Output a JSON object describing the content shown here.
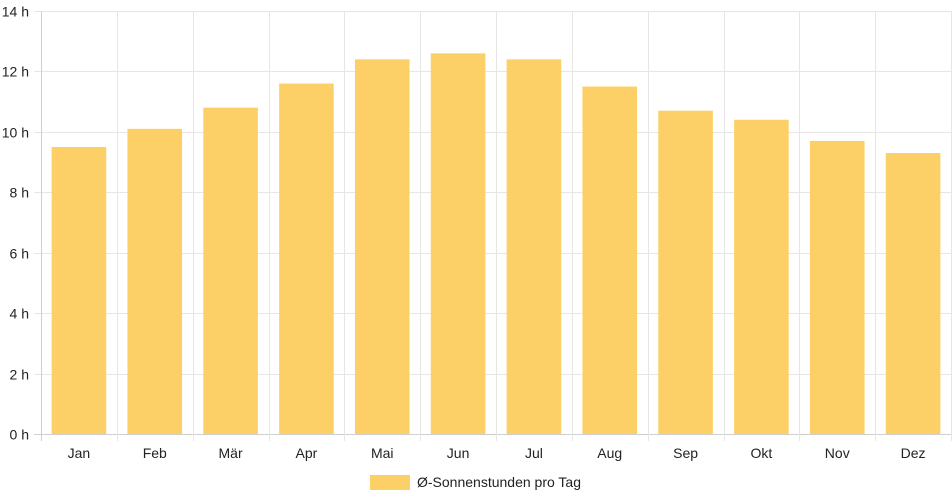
{
  "chart_data": {
    "type": "bar",
    "categories": [
      "Jan",
      "Feb",
      "Mär",
      "Apr",
      "Mai",
      "Jun",
      "Jul",
      "Aug",
      "Sep",
      "Okt",
      "Nov",
      "Dez"
    ],
    "series": [
      {
        "name": "Ø-Sonnenstunden pro Tag",
        "values": [
          9.5,
          10.1,
          10.8,
          11.6,
          12.4,
          12.6,
          12.4,
          11.5,
          10.7,
          10.4,
          9.7,
          9.3
        ],
        "color": "#fdd067"
      }
    ],
    "ylim": [
      0,
      14
    ],
    "yticks": [
      0,
      2,
      4,
      6,
      8,
      10,
      12,
      14
    ],
    "ytick_suffix": " h",
    "grid": true,
    "legend_position": "bottom-center"
  }
}
